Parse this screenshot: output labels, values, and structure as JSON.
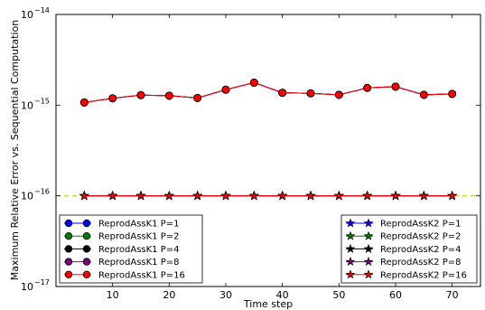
{
  "chart_data": {
    "type": "line",
    "title": "",
    "xlabel": "Time step",
    "ylabel": "Maximum Relative Error vs. Sequential Computation",
    "xlim": [
      0,
      75
    ],
    "ylim": [
      1e-17,
      1e-14
    ],
    "yscale": "log",
    "x_ticks": [
      10,
      20,
      30,
      40,
      50,
      60,
      70
    ],
    "x_tick_labels": [
      "10",
      "20",
      "30",
      "40",
      "50",
      "60",
      "70"
    ],
    "y_ticks": [
      1e-17,
      1e-16,
      1e-15,
      1e-14
    ],
    "y_tick_labels": [
      {
        "base": "10",
        "exp": "−17"
      },
      {
        "base": "10",
        "exp": "−16"
      },
      {
        "base": "10",
        "exp": "−15"
      },
      {
        "base": "10",
        "exp": "−14"
      }
    ],
    "grid": false,
    "reference_line": {
      "y": 1e-16,
      "color": "#c8c800",
      "style": "dashed"
    },
    "x": [
      5,
      10,
      15,
      20,
      25,
      30,
      35,
      40,
      45,
      50,
      55,
      60,
      65,
      70
    ],
    "series": [
      {
        "name": "ReprodAssK1 P=1",
        "marker": "circle",
        "color": "#0000ff",
        "values": [
          1.07e-15,
          1.19e-15,
          1.29e-15,
          1.27e-15,
          1.2e-15,
          1.48e-15,
          1.77e-15,
          1.37e-15,
          1.35e-15,
          1.3e-15,
          1.55e-15,
          1.6e-15,
          1.3e-15,
          1.33e-15
        ]
      },
      {
        "name": "ReprodAssK1 P=2",
        "marker": "circle",
        "color": "#008000",
        "values": [
          1.07e-15,
          1.19e-15,
          1.29e-15,
          1.27e-15,
          1.2e-15,
          1.48e-15,
          1.77e-15,
          1.37e-15,
          1.35e-15,
          1.3e-15,
          1.55e-15,
          1.6e-15,
          1.3e-15,
          1.33e-15
        ]
      },
      {
        "name": "ReprodAssK1 P=4",
        "marker": "circle",
        "color": "#000000",
        "values": [
          1.07e-15,
          1.19e-15,
          1.29e-15,
          1.27e-15,
          1.2e-15,
          1.48e-15,
          1.77e-15,
          1.37e-15,
          1.35e-15,
          1.3e-15,
          1.55e-15,
          1.6e-15,
          1.3e-15,
          1.33e-15
        ]
      },
      {
        "name": "ReprodAssK1 P=8",
        "marker": "circle",
        "color": "#800080",
        "values": [
          1.07e-15,
          1.19e-15,
          1.29e-15,
          1.27e-15,
          1.2e-15,
          1.48e-15,
          1.77e-15,
          1.37e-15,
          1.35e-15,
          1.3e-15,
          1.55e-15,
          1.6e-15,
          1.3e-15,
          1.33e-15
        ]
      },
      {
        "name": "ReprodAssK1 P=16",
        "marker": "circle",
        "color": "#ff0000",
        "values": [
          1.07e-15,
          1.19e-15,
          1.29e-15,
          1.27e-15,
          1.2e-15,
          1.48e-15,
          1.77e-15,
          1.37e-15,
          1.35e-15,
          1.3e-15,
          1.55e-15,
          1.6e-15,
          1.3e-15,
          1.33e-15
        ]
      },
      {
        "name": "ReprodAssK2 P=1",
        "marker": "star",
        "color": "#0000ff",
        "values": [
          1e-16,
          1e-16,
          1e-16,
          1e-16,
          1e-16,
          1e-16,
          1e-16,
          1e-16,
          1e-16,
          1e-16,
          1e-16,
          1e-16,
          1e-16,
          1e-16
        ]
      },
      {
        "name": "ReprodAssK2 P=2",
        "marker": "star",
        "color": "#008000",
        "values": [
          1e-16,
          1e-16,
          1e-16,
          1e-16,
          1e-16,
          1e-16,
          1e-16,
          1e-16,
          1e-16,
          1e-16,
          1e-16,
          1e-16,
          1e-16,
          1e-16
        ]
      },
      {
        "name": "ReprodAssK2 P=4",
        "marker": "star",
        "color": "#000000",
        "values": [
          1e-16,
          1e-16,
          1e-16,
          1e-16,
          1e-16,
          1e-16,
          1e-16,
          1e-16,
          1e-16,
          1e-16,
          1e-16,
          1e-16,
          1e-16,
          1e-16
        ]
      },
      {
        "name": "ReprodAssK2 P=8",
        "marker": "star",
        "color": "#800080",
        "values": [
          1e-16,
          1e-16,
          1e-16,
          1e-16,
          1e-16,
          1e-16,
          1e-16,
          1e-16,
          1e-16,
          1e-16,
          1e-16,
          1e-16,
          1e-16,
          1e-16
        ]
      },
      {
        "name": "ReprodAssK2 P=16",
        "marker": "star",
        "color": "#ff0000",
        "values": [
          1e-16,
          1e-16,
          1e-16,
          1e-16,
          1e-16,
          1e-16,
          1e-16,
          1e-16,
          1e-16,
          1e-16,
          1e-16,
          1e-16,
          1e-16,
          1e-16
        ]
      }
    ],
    "legends": [
      {
        "placement": "lower-left",
        "series": [
          0,
          1,
          2,
          3,
          4
        ]
      },
      {
        "placement": "lower-right",
        "series": [
          5,
          6,
          7,
          8,
          9
        ]
      }
    ]
  }
}
